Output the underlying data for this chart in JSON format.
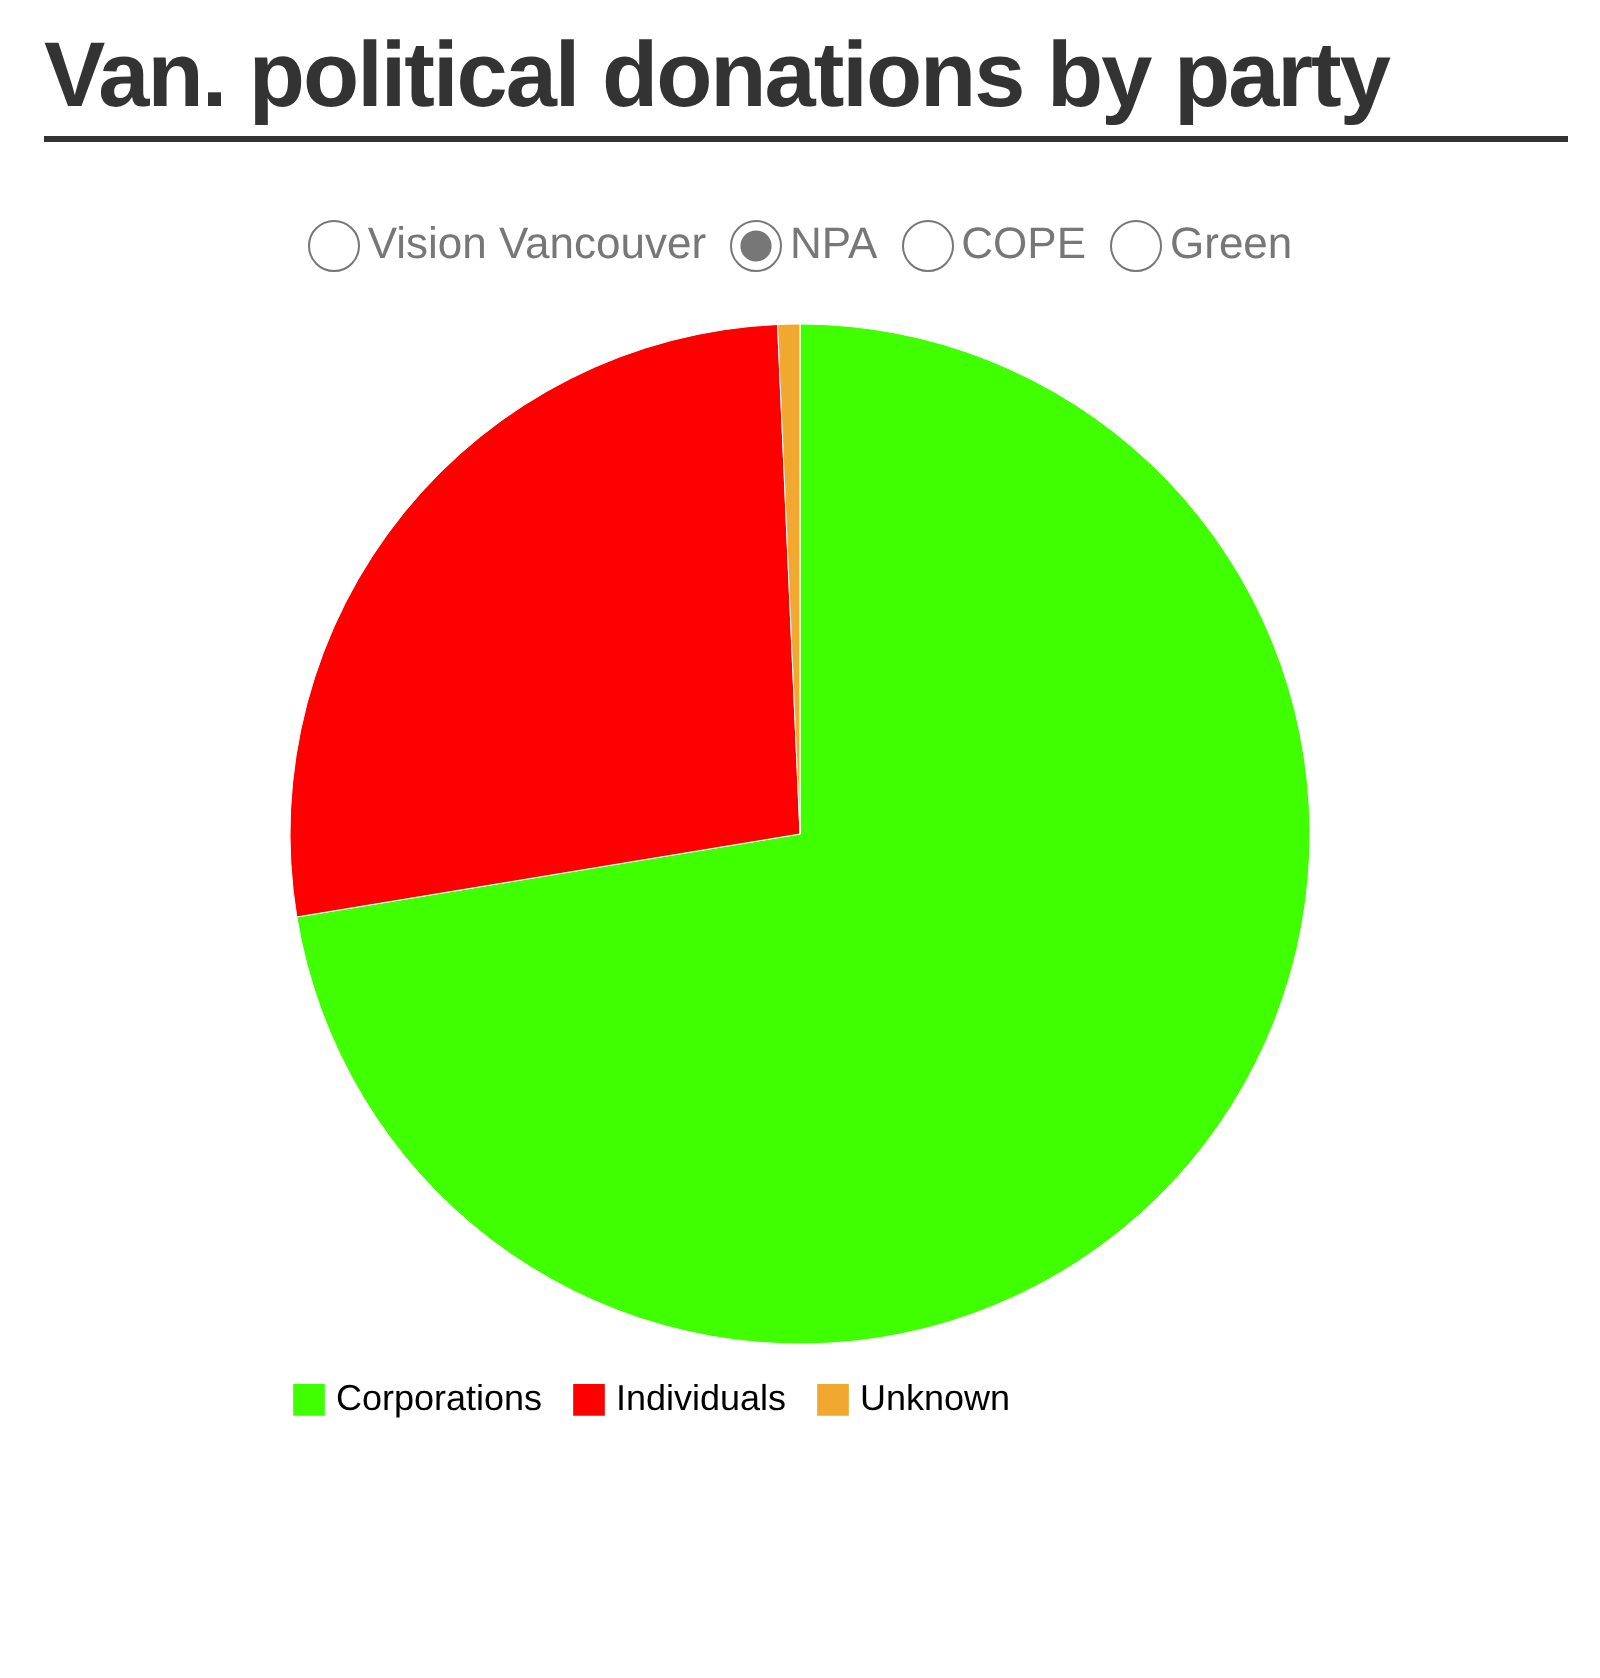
{
  "chart_data": {
    "type": "pie",
    "title": "Van. political donations by party",
    "annotations": [
      "Vision Vancouver",
      "NPA",
      "COPE",
      "Green"
    ],
    "categories": [
      "Corporations",
      "Individuals",
      "Unknown"
    ],
    "values": [
      72.4,
      26.9,
      0.7
    ],
    "colors": [
      "#3fff00",
      "#ff0000",
      "#f0a830"
    ],
    "legend": "bottom"
  }
}
